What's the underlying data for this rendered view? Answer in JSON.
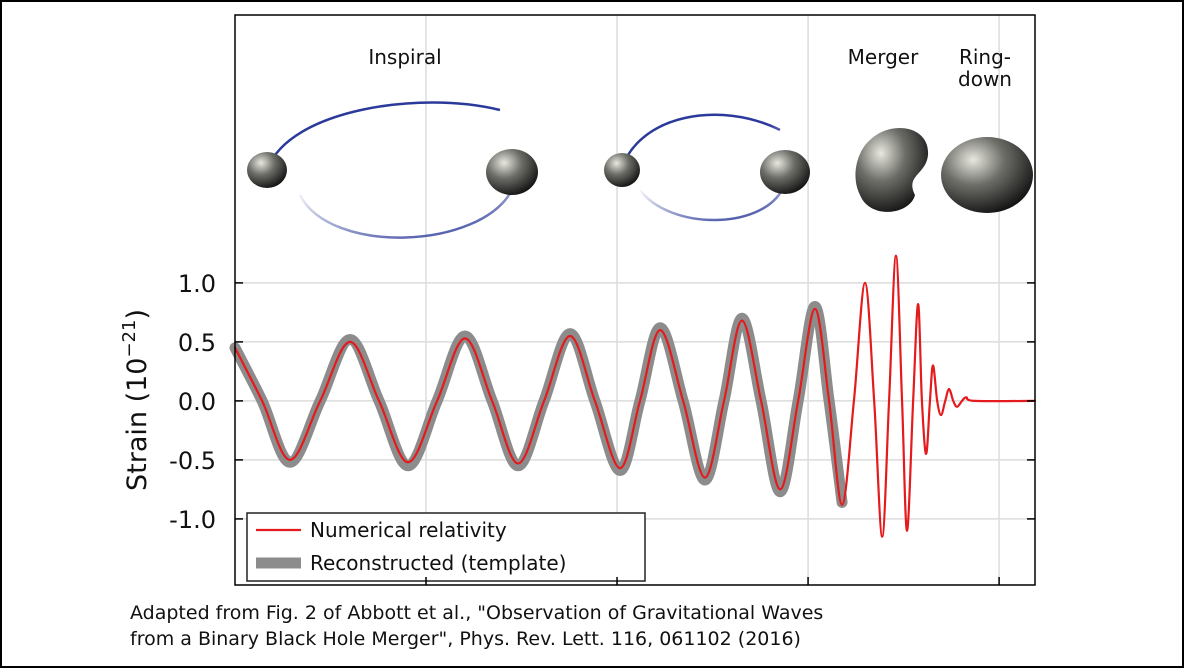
{
  "chart_data": {
    "type": "line",
    "annotations": {
      "inspiral": "Inspiral",
      "merger": "Merger",
      "ringdown": [
        "Ring-",
        "down"
      ]
    },
    "ylabel": {
      "base": "Strain (10",
      "exponent": "−21",
      "close": ")"
    },
    "caption": [
      "Adapted from Fig. 2 of Abbott et al., \"Observation of Gravitational Waves",
      "from a Binary Black Hole Merger\", Phys. Rev. Lett. 116, 061102 (2016)"
    ],
    "x": [
      0.25,
      0.2571,
      0.2644,
      0.2723,
      0.2801,
      0.2877,
      0.2953,
      0.3029,
      0.3102,
      0.3173,
      0.3241,
      0.3309,
      0.3377,
      0.3442,
      0.3508,
      0.356,
      0.3613,
      0.3673,
      0.373,
      0.378,
      0.3827,
      0.3877,
      0.3927,
      0.3974,
      0.4018,
      0.4055,
      0.4089,
      0.412,
      0.4149,
      0.4173,
      0.4194,
      0.4212,
      0.423,
      0.4246,
      0.4259,
      0.4275,
      0.4288,
      0.4298,
      0.4309,
      0.4319,
      0.4327,
      0.4338,
      0.4348,
      0.4359,
      0.4369,
      0.438,
      0.439,
      0.4403,
      0.4414,
      0.4437,
      0.4594
    ],
    "series": [
      {
        "name": "Numerical relativity",
        "color": "#e41a1c",
        "values": [
          0.45,
          0,
          -0.5,
          0,
          0.5,
          0,
          -0.52,
          0,
          0.53,
          0,
          -0.53,
          0,
          0.55,
          0,
          -0.57,
          0,
          0.6,
          0,
          -0.65,
          0,
          0.68,
          0,
          -0.75,
          0,
          0.78,
          0,
          -0.88,
          0,
          1.0,
          0,
          -1.15,
          0,
          1.23,
          0,
          -1.1,
          0,
          0.82,
          0,
          -0.45,
          0,
          0.3,
          0,
          -0.12,
          0,
          0.1,
          0,
          -0.05,
          0,
          0.03,
          0,
          0
        ]
      },
      {
        "name": "Reconstructed (template)",
        "color": "#8c8c8c",
        "values": [
          0.45,
          0,
          -0.52,
          0,
          0.52,
          0,
          -0.55,
          0,
          0.55,
          0,
          -0.55,
          0,
          0.57,
          0,
          -0.59,
          0,
          0.62,
          0,
          -0.67,
          0,
          0.7,
          0,
          -0.77,
          0,
          0.8,
          0,
          -0.86,
          null,
          null,
          null,
          null,
          null,
          null,
          null,
          null,
          null,
          null,
          null,
          null,
          null,
          null,
          null,
          null,
          null,
          null,
          null,
          null,
          null,
          null,
          null,
          null
        ]
      }
    ],
    "xlim": [
      0.25,
      0.4594
    ],
    "xgrid": [
      0.3,
      0.35,
      0.4,
      0.45
    ],
    "ylim": [
      -1.56,
      3.27
    ],
    "yticks": [
      {
        "value": -1.0,
        "label": "-1.0"
      },
      {
        "value": -0.5,
        "label": "-0.5"
      },
      {
        "value": 0.0,
        "label": "0.0"
      },
      {
        "value": 0.5,
        "label": "0.5"
      },
      {
        "value": 1.0,
        "label": "1.0"
      }
    ],
    "grid": true,
    "legend": "lower left"
  }
}
